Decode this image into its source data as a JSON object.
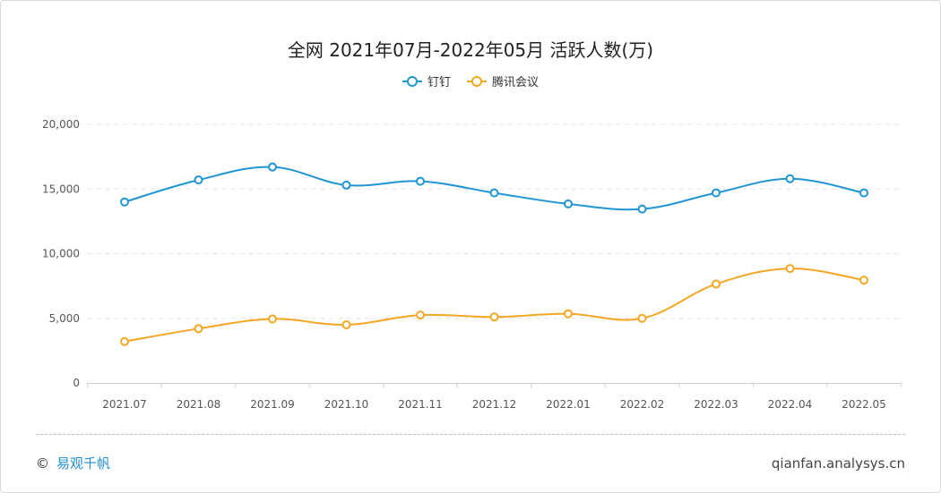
{
  "chart_data": {
    "type": "line",
    "title": "全网 2021年07月-2022年05月 活跃人数(万)",
    "categories": [
      "2021.07",
      "2021.08",
      "2021.09",
      "2021.10",
      "2021.11",
      "2021.12",
      "2022.01",
      "2022.02",
      "2022.03",
      "2022.04",
      "2022.05"
    ],
    "yticks": [
      "0",
      "5,000",
      "10,000",
      "15,000",
      "20,000"
    ],
    "ylim": [
      0,
      20000
    ],
    "grid": true,
    "legend_position": "top-center",
    "smooth": true,
    "series": [
      {
        "name": "钉钉",
        "color": "#1f95d6",
        "values": [
          14000,
          15700,
          16700,
          15300,
          15600,
          14700,
          13850,
          13450,
          14700,
          15800,
          14700
        ]
      },
      {
        "name": "腾讯会议",
        "color": "#f5a623",
        "values": [
          3200,
          4200,
          4950,
          4500,
          5250,
          5100,
          5350,
          5000,
          7650,
          8850,
          7950
        ]
      }
    ]
  },
  "footer": {
    "copyright": "©",
    "brand": "易观千帆",
    "site": "qianfan.analysys.cn"
  }
}
